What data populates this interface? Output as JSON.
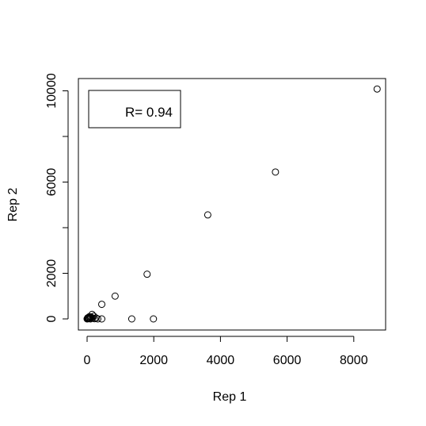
{
  "chart_data": {
    "type": "scatter",
    "title": "",
    "xlabel": "Rep 1",
    "ylabel": "Rep 2",
    "xlim": [
      0,
      8700
    ],
    "ylim": [
      0,
      10100
    ],
    "x_ticks": [
      "0",
      "2000",
      "4000",
      "6000",
      "8000"
    ],
    "y_ticks": [
      "0",
      "2000",
      "6000",
      "10000"
    ],
    "grid": false,
    "legend": {
      "position": "top-left",
      "text": "R= 0.94"
    },
    "colors": {
      "points": "#000000",
      "axes": "#000000",
      "background": "#ffffff"
    },
    "points": [
      {
        "x": 0,
        "y": 0
      },
      {
        "x": 10,
        "y": 20
      },
      {
        "x": 20,
        "y": 50
      },
      {
        "x": 30,
        "y": 10
      },
      {
        "x": 40,
        "y": 60
      },
      {
        "x": 60,
        "y": 30
      },
      {
        "x": 70,
        "y": 100
      },
      {
        "x": 90,
        "y": 40
      },
      {
        "x": 100,
        "y": 0
      },
      {
        "x": 120,
        "y": 80
      },
      {
        "x": 150,
        "y": 200
      },
      {
        "x": 160,
        "y": 30
      },
      {
        "x": 200,
        "y": 120
      },
      {
        "x": 220,
        "y": 10
      },
      {
        "x": 270,
        "y": 40
      },
      {
        "x": 320,
        "y": 0
      },
      {
        "x": 440,
        "y": 0
      },
      {
        "x": 440,
        "y": 640
      },
      {
        "x": 840,
        "y": 1000
      },
      {
        "x": 1340,
        "y": 0
      },
      {
        "x": 1800,
        "y": 1960
      },
      {
        "x": 1990,
        "y": 0
      },
      {
        "x": 3620,
        "y": 4560
      },
      {
        "x": 5650,
        "y": 6440
      },
      {
        "x": 8700,
        "y": 10080
      }
    ]
  }
}
